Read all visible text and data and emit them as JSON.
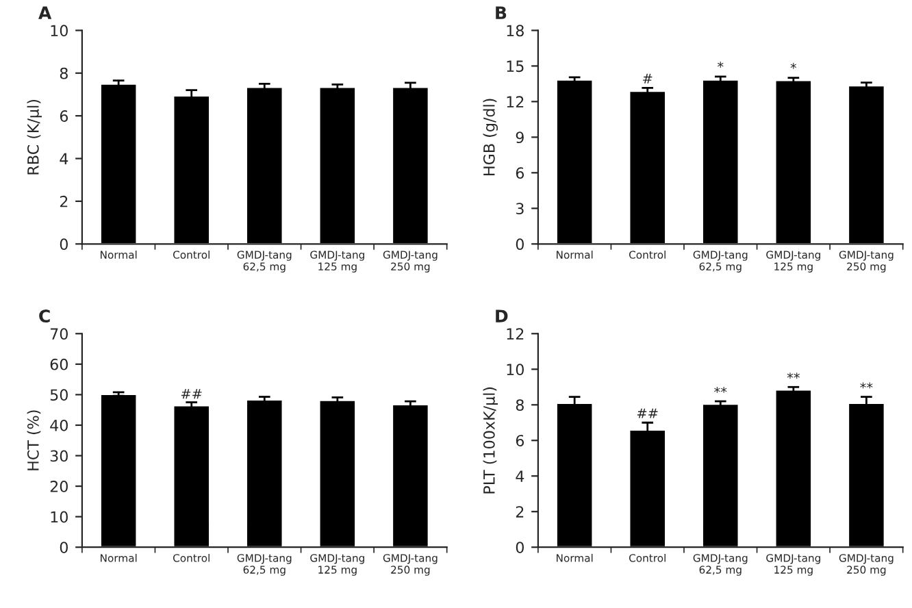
{
  "chart_data": [
    {
      "type": "bar",
      "title": "A",
      "ylabel": "RBC (K/μl)",
      "categories": [
        "Normal",
        "Control",
        "GMDJ-tang\n62,5 mg",
        "GMDJ-tang\n125 mg",
        "GMDJ-tang\n250 mg"
      ],
      "values": [
        7.5,
        6.95,
        7.35,
        7.35,
        7.35
      ],
      "errors": [
        0.15,
        0.25,
        0.15,
        0.12,
        0.2
      ],
      "color": "#000000",
      "ylim": [
        0,
        10
      ],
      "yticks": [
        0,
        2,
        4,
        6,
        8,
        10
      ],
      "grid": false
    },
    {
      "type": "bar",
      "title": "B",
      "ylabel": "HGB (g/dl)",
      "categories": [
        "Normal",
        "Control",
        "GMDJ-tang\n62,5 mg",
        "GMDJ-tang\n125 mg",
        "GMDJ-tang\n250 mg"
      ],
      "values": [
        13.85,
        12.9,
        13.85,
        13.8,
        13.35
      ],
      "errors": [
        0.2,
        0.25,
        0.25,
        0.2,
        0.25
      ],
      "color": "#000000",
      "ylim": [
        0,
        18
      ],
      "yticks": [
        0,
        3,
        6,
        9,
        12,
        15,
        18
      ],
      "grid": false,
      "annotations": [
        {
          "text": "#",
          "x": "Control",
          "y": 13.3
        },
        {
          "text": "*",
          "x": "GMDJ-tang\n62,5 mg",
          "y": 14.3
        },
        {
          "text": "*",
          "x": "GMDJ-tang\n125 mg",
          "y": 14.2
        }
      ]
    },
    {
      "type": "bar",
      "title": "C",
      "ylabel": "HCT (%)",
      "categories": [
        "Normal",
        "Control",
        "GMDJ-tang\n62,5 mg",
        "GMDJ-tang\n125 mg",
        "GMDJ-tang\n250 mg"
      ],
      "values": [
        50.2,
        46.5,
        48.4,
        48.2,
        46.8
      ],
      "errors": [
        0.6,
        1,
        0.9,
        0.9,
        1
      ],
      "color": "#000000",
      "ylim": [
        0,
        70
      ],
      "yticks": [
        0,
        10,
        20,
        30,
        40,
        50,
        60,
        70
      ],
      "grid": false,
      "annotations": [
        {
          "text": "##",
          "x": "Control",
          "y": 47.8
        }
      ]
    },
    {
      "type": "bar",
      "title": "D",
      "ylabel": "PLT (100xK/μl)",
      "categories": [
        "Normal",
        "Control",
        "GMDJ-tang\n62,5 mg",
        "GMDJ-tang\n125 mg",
        "GMDJ-tang\n250 mg"
      ],
      "values": [
        8.1,
        6.6,
        8.05,
        8.85,
        8.1
      ],
      "errors": [
        0.35,
        0.4,
        0.15,
        0.15,
        0.35
      ],
      "color": "#000000",
      "ylim": [
        0,
        12
      ],
      "yticks": [
        0,
        2,
        4,
        6,
        8,
        10,
        12
      ],
      "grid": false,
      "annotations": [
        {
          "text": "##",
          "x": "Control",
          "y": 7.1
        },
        {
          "text": "**",
          "x": "GMDJ-tang\n62,5 mg",
          "y": 8.3
        },
        {
          "text": "**",
          "x": "GMDJ-tang\n125 mg",
          "y": 9.1
        },
        {
          "text": "**",
          "x": "GMDJ-tang\n250 mg",
          "y": 8.55
        }
      ]
    }
  ]
}
